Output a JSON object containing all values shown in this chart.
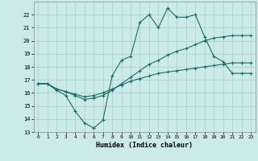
{
  "title": "",
  "xlabel": "Humidex (Indice chaleur)",
  "xlim": [
    -0.5,
    23.5
  ],
  "ylim": [
    13,
    23
  ],
  "xticks": [
    0,
    1,
    2,
    3,
    4,
    5,
    6,
    7,
    8,
    9,
    10,
    11,
    12,
    13,
    14,
    15,
    16,
    17,
    18,
    19,
    20,
    21,
    22,
    23
  ],
  "yticks": [
    13,
    14,
    15,
    16,
    17,
    18,
    19,
    20,
    21,
    22
  ],
  "background_color": "#cceae7",
  "grid_color": "#aad4d0",
  "line_color": "#1a6b6b",
  "line1_x": [
    0,
    1,
    2,
    3,
    4,
    5,
    6,
    7,
    8,
    9,
    10,
    11,
    12,
    13,
    14,
    15,
    16,
    17,
    18,
    19,
    20,
    21,
    22,
    23
  ],
  "line1_y": [
    16.7,
    16.7,
    16.2,
    15.8,
    14.6,
    13.7,
    13.3,
    13.9,
    17.3,
    18.5,
    18.8,
    21.4,
    22.0,
    21.0,
    22.5,
    21.8,
    21.8,
    22.0,
    20.3,
    18.8,
    18.4,
    17.5,
    17.5,
    17.5
  ],
  "line2_x": [
    0,
    1,
    2,
    3,
    4,
    5,
    6,
    7,
    8,
    9,
    10,
    11,
    12,
    13,
    14,
    15,
    16,
    17,
    18,
    19,
    20,
    21,
    22,
    23
  ],
  "line2_y": [
    16.7,
    16.7,
    16.3,
    16.1,
    15.8,
    15.5,
    15.6,
    15.8,
    16.2,
    16.7,
    17.2,
    17.7,
    18.2,
    18.5,
    18.9,
    19.2,
    19.4,
    19.7,
    20.0,
    20.2,
    20.3,
    20.4,
    20.4,
    20.4
  ],
  "line3_x": [
    0,
    1,
    2,
    3,
    4,
    5,
    6,
    7,
    8,
    9,
    10,
    11,
    12,
    13,
    14,
    15,
    16,
    17,
    18,
    19,
    20,
    21,
    22,
    23
  ],
  "line3_y": [
    16.7,
    16.7,
    16.3,
    16.1,
    15.9,
    15.7,
    15.8,
    16.0,
    16.3,
    16.6,
    16.9,
    17.1,
    17.3,
    17.5,
    17.6,
    17.7,
    17.8,
    17.9,
    18.0,
    18.1,
    18.2,
    18.3,
    18.3,
    18.3
  ],
  "marker_size": 3,
  "line_width": 0.8
}
